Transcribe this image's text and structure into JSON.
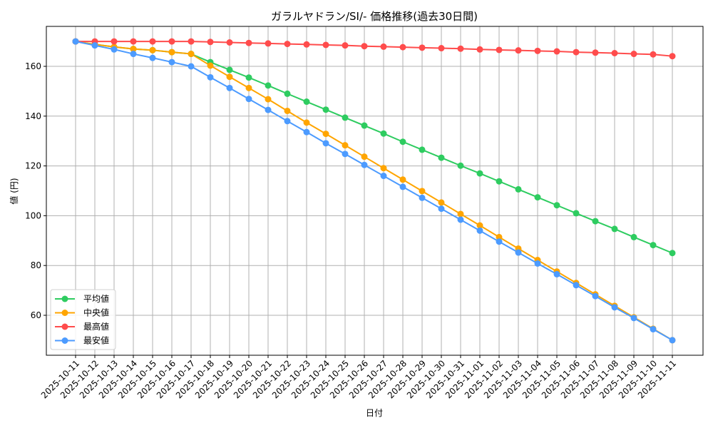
{
  "chart_data": {
    "type": "line",
    "title": "ガラルヤドラン/SI/- 価格推移(過去30日間)",
    "xlabel": "日付",
    "ylabel": "値 (円)",
    "ylim": [
      44,
      175
    ],
    "yticks": [
      60,
      80,
      100,
      120,
      140,
      160
    ],
    "grid": true,
    "legend_position": "lower left",
    "categories": [
      "2025-10-11",
      "2025-10-12",
      "2025-10-13",
      "2025-10-14",
      "2025-10-15",
      "2025-10-16",
      "2025-10-17",
      "2025-10-18",
      "2025-10-19",
      "2025-10-20",
      "2025-10-21",
      "2025-10-22",
      "2025-10-23",
      "2025-10-24",
      "2025-10-25",
      "2025-10-26",
      "2025-10-27",
      "2025-10-28",
      "2025-10-29",
      "2025-10-30",
      "2025-10-31",
      "2025-11-01",
      "2025-11-02",
      "2025-11-03",
      "2025-11-04",
      "2025-11-05",
      "2025-11-06",
      "2025-11-07",
      "2025-11-08",
      "2025-11-09",
      "2025-11-10",
      "2025-11-11"
    ],
    "series": [
      {
        "name": "平均値",
        "color": "#2ecc60",
        "values": [
          170,
          168.8,
          167.8,
          167.0,
          166.5,
          165.7,
          165.0,
          161.7,
          158.6,
          155.5,
          152.3,
          149.0,
          145.8,
          142.6,
          139.4,
          136.2,
          133.0,
          129.7,
          126.5,
          123.3,
          120.1,
          117.0,
          113.8,
          110.6,
          107.4,
          104.2,
          101.0,
          97.8,
          94.7,
          91.4,
          88.2,
          85.0
        ]
      },
      {
        "name": "中央値",
        "color": "#ffa500",
        "values": [
          170,
          168.8,
          167.8,
          167.0,
          166.5,
          165.7,
          165.0,
          160.3,
          155.8,
          151.3,
          146.8,
          142.1,
          137.4,
          132.9,
          128.3,
          123.7,
          119.1,
          114.5,
          109.9,
          105.3,
          100.7,
          96.1,
          91.4,
          86.8,
          82.2,
          77.6,
          73.0,
          68.4,
          63.8,
          59.2,
          54.6,
          50.0
        ]
      },
      {
        "name": "最高値",
        "color": "#ff4c4c",
        "values": [
          170,
          170,
          170,
          170,
          170,
          170,
          170,
          169.8,
          169.6,
          169.4,
          169.2,
          169.0,
          168.8,
          168.6,
          168.4,
          168.1,
          167.9,
          167.7,
          167.5,
          167.3,
          167.1,
          166.8,
          166.6,
          166.4,
          166.2,
          166.0,
          165.7,
          165.5,
          165.3,
          165.0,
          164.8,
          164.1
        ]
      },
      {
        "name": "最安値",
        "color": "#4c9bff",
        "values": [
          170,
          168.4,
          166.8,
          165.0,
          163.4,
          161.7,
          160.0,
          155.6,
          151.3,
          146.9,
          142.5,
          138.0,
          133.6,
          129.1,
          124.8,
          120.4,
          116.0,
          111.6,
          107.2,
          102.8,
          98.4,
          94.0,
          89.6,
          85.2,
          80.8,
          76.5,
          72.1,
          67.7,
          63.2,
          58.9,
          54.4,
          50.0
        ]
      }
    ]
  }
}
